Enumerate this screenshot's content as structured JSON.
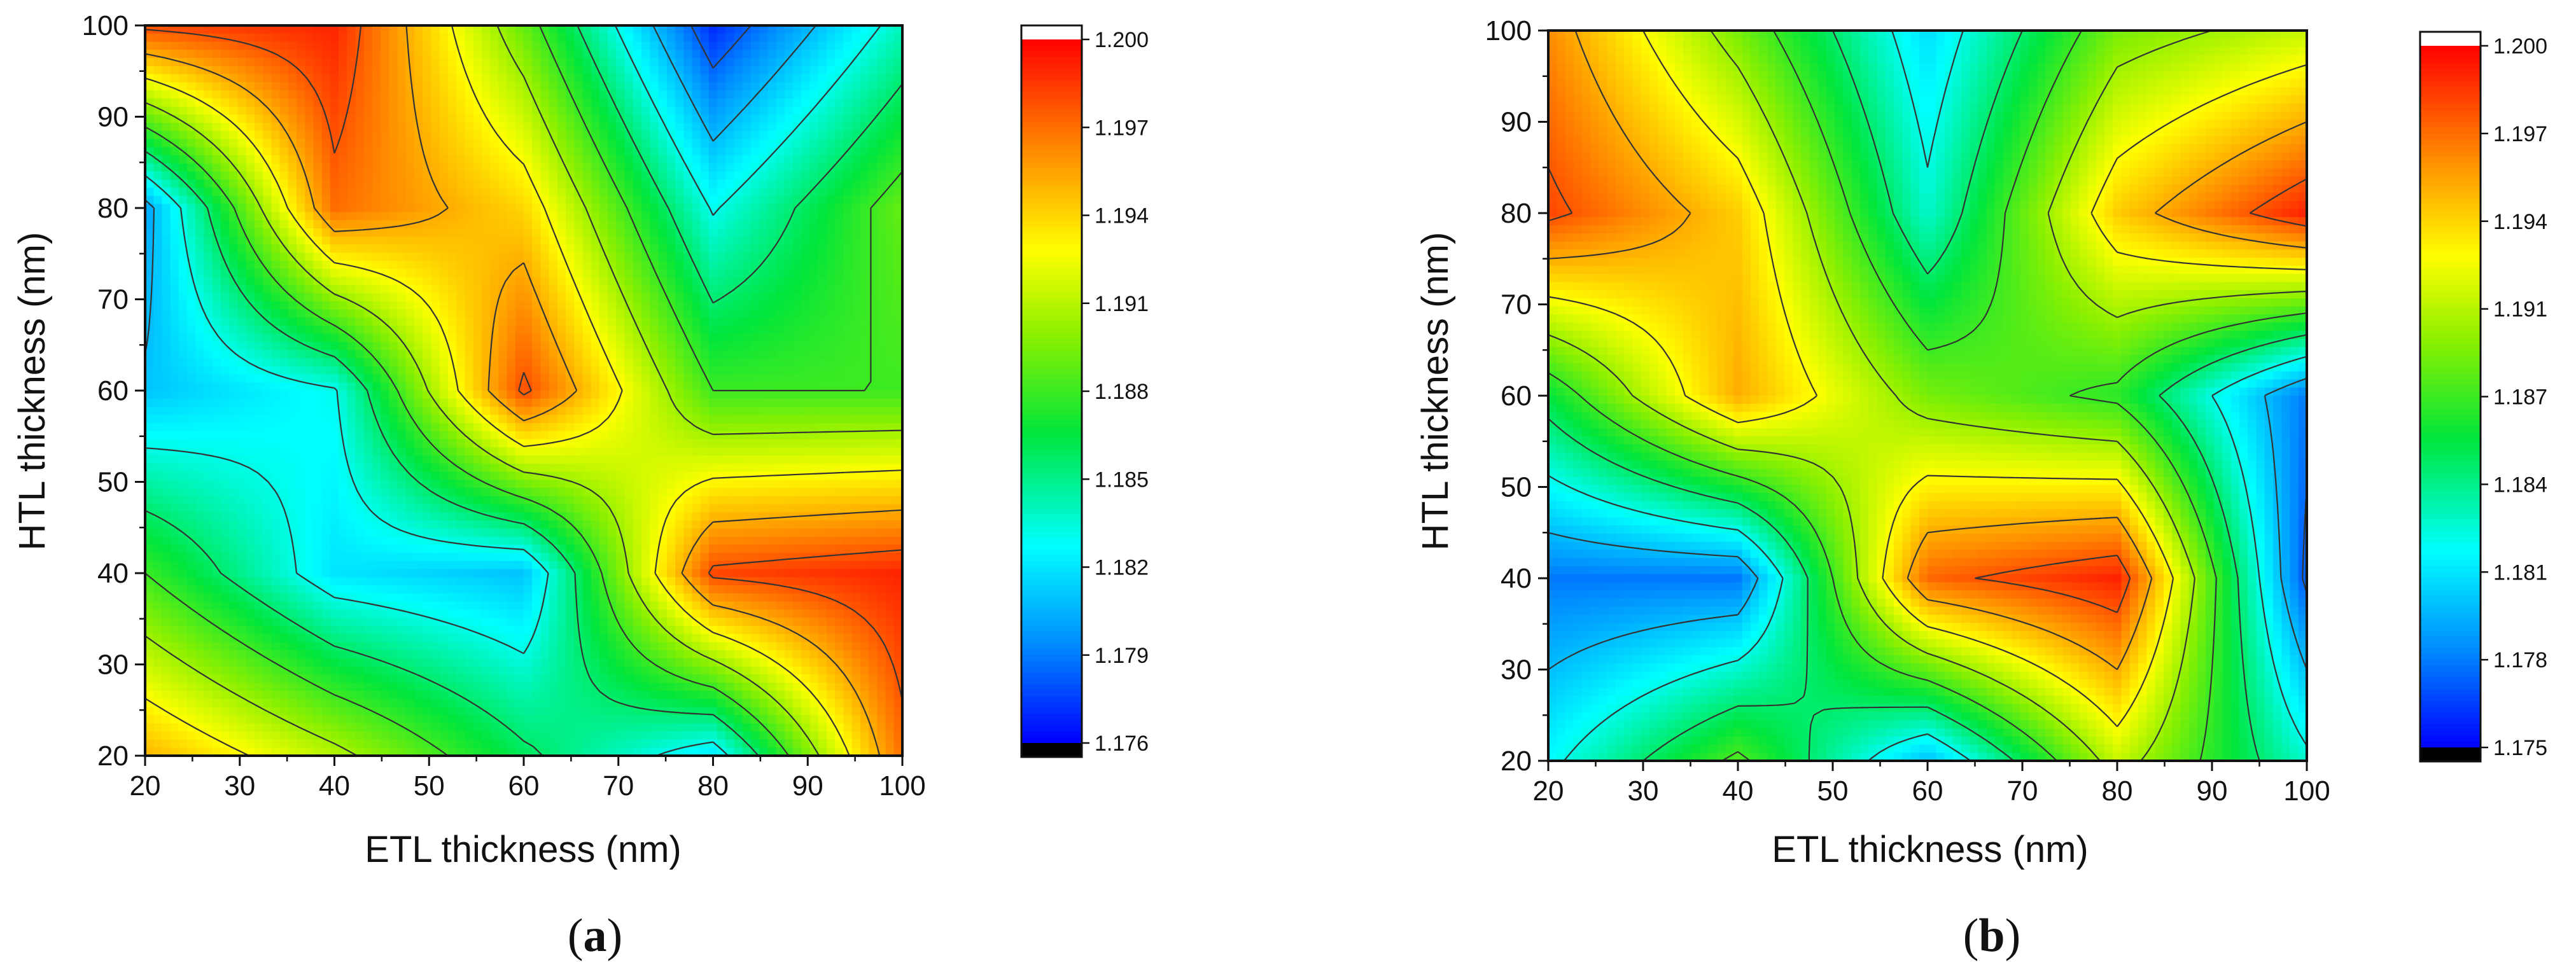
{
  "figure": {
    "caption_a": "a",
    "caption_b": "b"
  },
  "chart_data": [
    {
      "type": "heatmap",
      "panel": "a",
      "xlabel": "ETL thickness (nm)",
      "ylabel": "HTL thickness (nm)",
      "xlim": [
        20,
        100
      ],
      "ylim": [
        20,
        100
      ],
      "xticks": [
        20,
        30,
        40,
        50,
        60,
        70,
        80,
        90,
        100
      ],
      "yticks": [
        20,
        30,
        40,
        50,
        60,
        70,
        80,
        90,
        100
      ],
      "x": [
        20,
        40,
        60,
        80,
        100
      ],
      "y": [
        20,
        40,
        60,
        80,
        100
      ],
      "z": [
        [
          1.195,
          1.191,
          1.186,
          1.182,
          1.197
        ],
        [
          1.188,
          1.182,
          1.181,
          1.198,
          1.199
        ],
        [
          1.181,
          1.183,
          1.198,
          1.188,
          1.188
        ],
        [
          1.18,
          1.197,
          1.194,
          1.183,
          1.189
        ],
        [
          1.198,
          1.199,
          1.189,
          1.177,
          1.184
        ]
      ],
      "zlim": [
        1.176,
        1.2
      ],
      "colorbar": {
        "min": 1.176,
        "max": 1.2,
        "ticks": [
          "1.176",
          "1.179",
          "1.182",
          "1.185",
          "1.188",
          "1.191",
          "1.194",
          "1.197",
          "1.200"
        ]
      }
    },
    {
      "type": "heatmap",
      "panel": "b",
      "xlabel": "ETL thickness (nm)",
      "ylabel": "HTL thickness (nm)",
      "xlim": [
        20,
        100
      ],
      "ylim": [
        20,
        100
      ],
      "xticks": [
        20,
        30,
        40,
        50,
        60,
        70,
        80,
        90,
        100
      ],
      "yticks": [
        20,
        30,
        40,
        50,
        60,
        70,
        80,
        90,
        100
      ],
      "x": [
        20,
        40,
        60,
        80,
        100
      ],
      "y": [
        20,
        40,
        60,
        80,
        100
      ],
      "z": [
        [
          1.182,
          1.188,
          1.18,
          1.191,
          1.183
        ],
        [
          1.178,
          1.178,
          1.197,
          1.199,
          1.177
        ],
        [
          1.186,
          1.195,
          1.189,
          1.187,
          1.178
        ],
        [
          1.198,
          1.194,
          1.183,
          1.194,
          1.199
        ],
        [
          1.196,
          1.189,
          1.181,
          1.189,
          1.191
        ]
      ],
      "zlim": [
        1.175,
        1.2
      ],
      "colorbar": {
        "min": 1.175,
        "max": 1.2,
        "ticks": [
          "1.175",
          "1.178",
          "1.181",
          "1.184",
          "1.187",
          "1.191",
          "1.194",
          "1.197",
          "1.200"
        ]
      }
    }
  ]
}
